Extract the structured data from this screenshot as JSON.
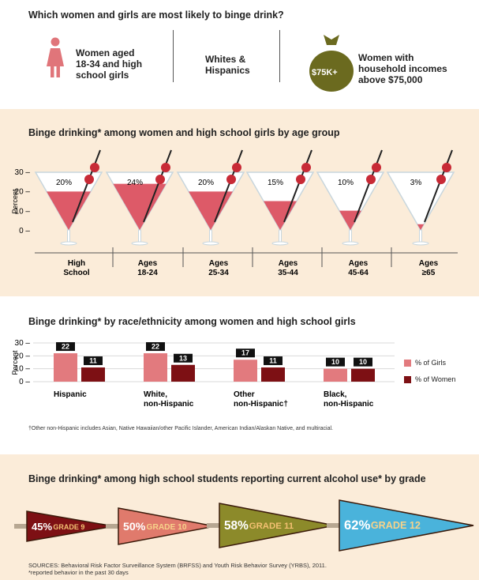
{
  "header": {
    "title": "Which women and girls are most likely to binge drink?",
    "group1": [
      "Women aged",
      "18-34 and high",
      "school girls"
    ],
    "group2": [
      "Whites &",
      "Hispanics"
    ],
    "group3_badge": "$75K+",
    "group3": [
      "Women with",
      "household incomes",
      "above $75,000"
    ]
  },
  "age_section": {
    "title": "Binge drinking* among women and high school girls by age group"
  },
  "race_section": {
    "title": "Binge drinking* by race/ethnicity among women and high school girls",
    "footnote": "†Other non-Hispanic includes Asian, Native Hawaiian/other Pacific Islander, American Indian/Alaskan Native, and multiracial."
  },
  "grade_section": {
    "title": "Binge drinking* among high school students reporting current alcohol use* by grade"
  },
  "sources": [
    "SOURCES: Behavioral Risk Factor Surveillance System (BRFSS) and Youth Risk Behavior Survey (YRBS), 2011.",
    "*reported behavior in the past 30 days"
  ],
  "colors": {
    "accent": "#d96a6f",
    "dark_red": "#7d1014",
    "bag": "#6b6a1f",
    "band": "#fbecd9",
    "glass_fill": "#dd5a68"
  },
  "chart_data": [
    {
      "type": "bar",
      "title": "Binge drinking* among women and high school girls by age group",
      "ylabel": "Percent",
      "yticks": [
        "30",
        "20",
        "10",
        "0"
      ],
      "ylim": [
        0,
        30
      ],
      "categories": [
        [
          "High",
          "School"
        ],
        [
          "Ages",
          "18-24"
        ],
        [
          "Ages",
          "25-34"
        ],
        [
          "Ages",
          "35-44"
        ],
        [
          "Ages",
          "45-64"
        ],
        [
          "Ages",
          "≥65"
        ]
      ],
      "values": [
        20,
        24,
        20,
        15,
        10,
        3
      ],
      "value_labels": [
        "20%",
        "24%",
        "20%",
        "15%",
        "10%",
        "3%"
      ]
    },
    {
      "type": "bar",
      "title": "Binge drinking* by race/ethnicity among women and high school girls",
      "ylabel": "Percent",
      "yticks": [
        "30",
        "20",
        "10",
        "0"
      ],
      "ylim": [
        0,
        30
      ],
      "categories": [
        [
          "Hispanic"
        ],
        [
          "White,",
          "non-Hispanic"
        ],
        [
          "Other",
          "non-Hispanic†"
        ],
        [
          "Black,",
          "non-Hispanic"
        ]
      ],
      "series": [
        {
          "name": "% of Girls",
          "values": [
            22,
            22,
            17,
            10
          ],
          "labels": [
            "22",
            "22",
            "17",
            "10"
          ],
          "color": "#e27a7e"
        },
        {
          "name": "% of Women",
          "values": [
            11,
            13,
            11,
            10
          ],
          "labels": [
            "11",
            "13",
            "11",
            "10"
          ],
          "color": "#7d1014"
        }
      ],
      "legend": "right"
    },
    {
      "type": "bar",
      "title": "Binge drinking* among high school students reporting current alcohol use* by grade",
      "categories": [
        "GRADE 9",
        "GRADE 10",
        "GRADE 11",
        "GRADE 12"
      ],
      "values": [
        45,
        50,
        58,
        62
      ],
      "value_labels": [
        "45%",
        "50%",
        "58%",
        "62%"
      ],
      "colors": [
        "#7d1014",
        "#e07a6c",
        "#8c8a2a",
        "#4ab3db"
      ]
    }
  ]
}
